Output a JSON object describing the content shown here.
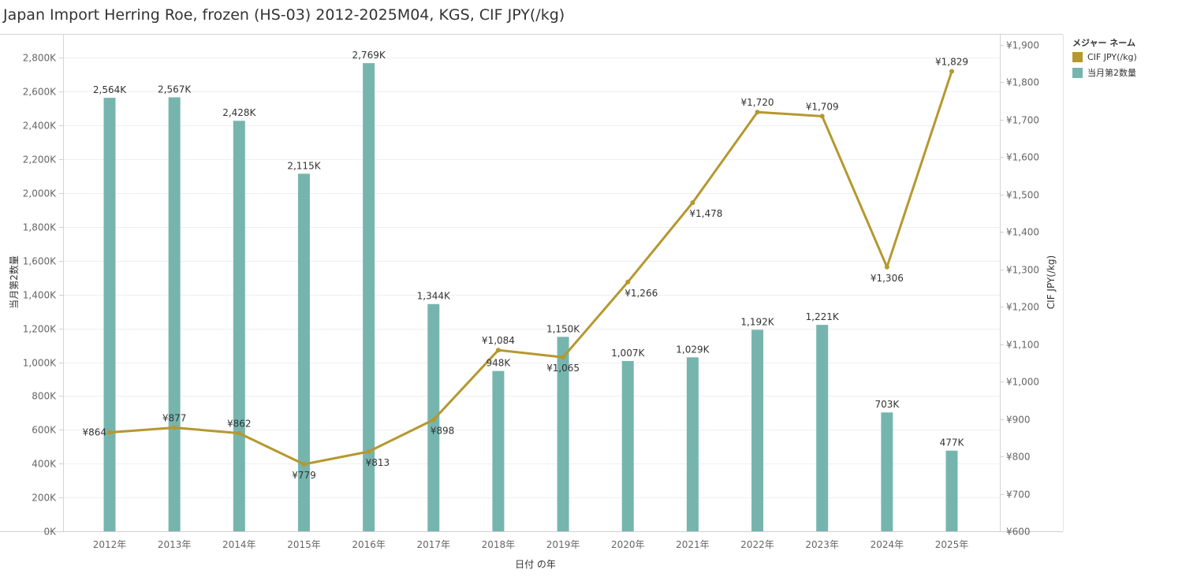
{
  "title": "Japan Import Herring Roe, frozen (HS-03) 2012-2025M04, KGS, CIF JPY(/kg)",
  "legend": {
    "title": "メジャー ネーム",
    "items": [
      {
        "label": "CIF JPY(/kg)",
        "color": "#b5982f"
      },
      {
        "label": "当月第2数量",
        "color": "#76b5ae"
      }
    ]
  },
  "chart_data": {
    "type": "bar+line",
    "categories": [
      "2012年",
      "2013年",
      "2014年",
      "2015年",
      "2016年",
      "2017年",
      "2018年",
      "2019年",
      "2020年",
      "2021年",
      "2022年",
      "2023年",
      "2024年",
      "2025年"
    ],
    "xlabel": "日付 の年",
    "y_left": {
      "label": "当月第2数量",
      "lim": [
        0,
        2900
      ],
      "ticks": [
        0,
        200,
        400,
        600,
        800,
        1000,
        1200,
        1400,
        1600,
        1800,
        2000,
        2200,
        2400,
        2600,
        2800
      ],
      "tick_labels": [
        "0K",
        "200K",
        "400K",
        "600K",
        "800K",
        "1,000K",
        "1,200K",
        "1,400K",
        "1,600K",
        "1,800K",
        "2,000K",
        "2,200K",
        "2,400K",
        "2,600K",
        "2,800K"
      ]
    },
    "y_right": {
      "label": "CIF JPY(/kg)",
      "lim": [
        600,
        1910
      ],
      "ticks": [
        600,
        700,
        800,
        900,
        1000,
        1100,
        1200,
        1300,
        1400,
        1500,
        1600,
        1700,
        1800,
        1900
      ],
      "tick_labels": [
        "¥600",
        "¥700",
        "¥800",
        "¥900",
        "¥1,000",
        "¥1,100",
        "¥1,200",
        "¥1,300",
        "¥1,400",
        "¥1,500",
        "¥1,600",
        "¥1,700",
        "¥1,800",
        "¥1,900"
      ]
    },
    "series": [
      {
        "name": "当月第2数量",
        "type": "bar",
        "axis": "left",
        "color": "#76b5ae",
        "values": [
          2564,
          2567,
          2428,
          2115,
          2769,
          1344,
          948,
          1150,
          1007,
          1029,
          1192,
          1221,
          703,
          477
        ],
        "labels": [
          "2,564K",
          "2,567K",
          "2,428K",
          "2,115K",
          "2,769K",
          "1,344K",
          "948K",
          "1,150K",
          "1,007K",
          "1,029K",
          "1,192K",
          "1,221K",
          "703K",
          "477K"
        ]
      },
      {
        "name": "CIF JPY(/kg)",
        "type": "line",
        "axis": "right",
        "color": "#b5982f",
        "values": [
          864,
          877,
          862,
          779,
          813,
          898,
          1084,
          1065,
          1266,
          1478,
          1720,
          1709,
          1306,
          1829
        ],
        "labels": [
          "¥864",
          "¥877",
          "¥862",
          "¥779",
          "¥813",
          "¥898",
          "¥1,084",
          "¥1,065",
          "¥1,266",
          "¥1,478",
          "¥1,720",
          "¥1,709",
          "¥1,306",
          "¥1,829"
        ]
      }
    ],
    "grid": true
  }
}
